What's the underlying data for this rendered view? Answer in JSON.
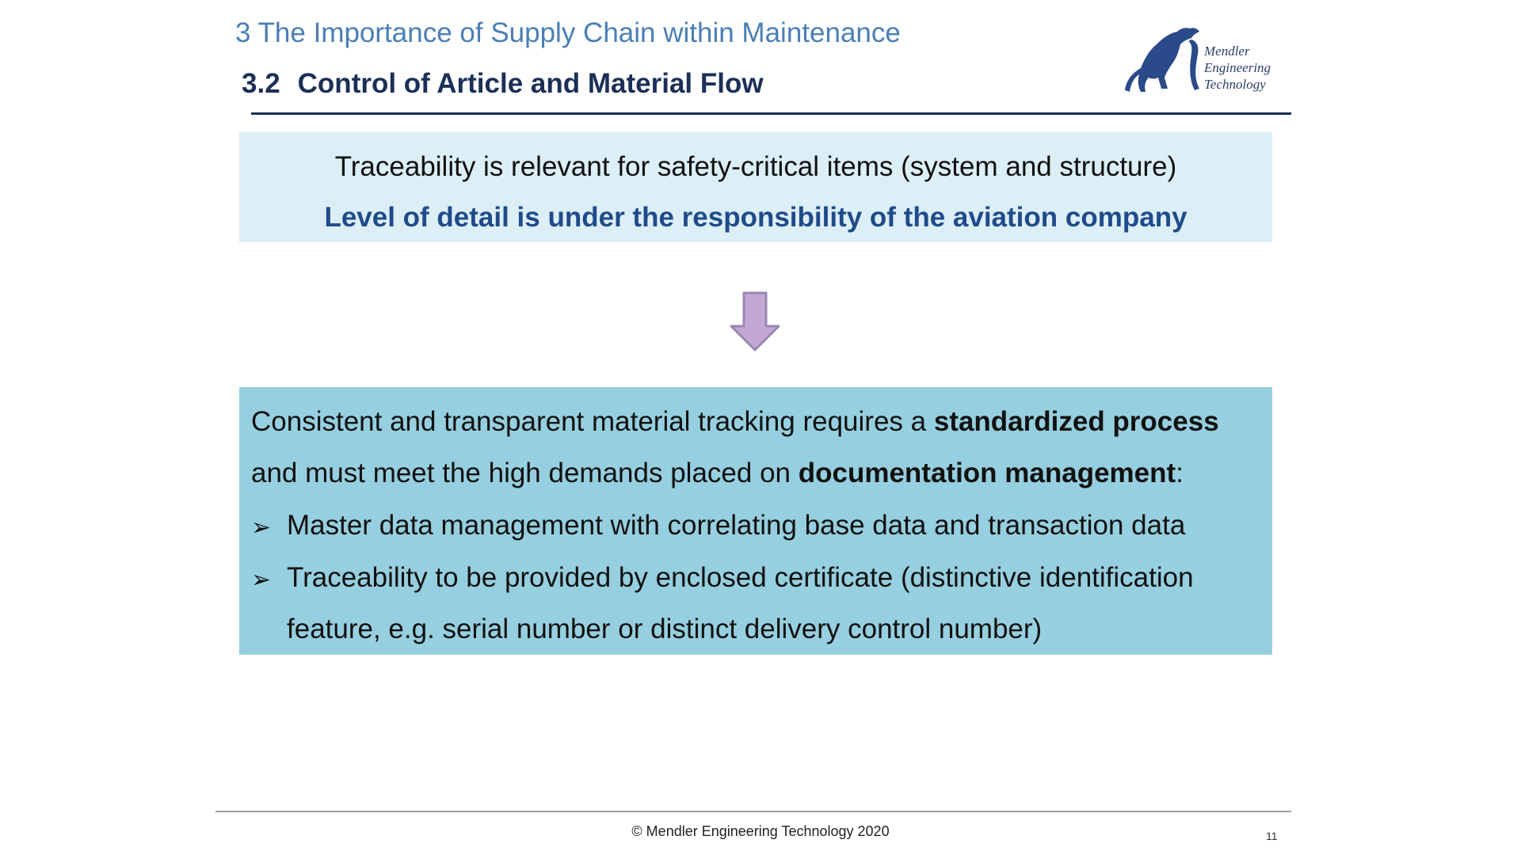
{
  "header": {
    "chapter_title": "3 The Importance of Supply Chain within Maintenance",
    "section_number": "3.2",
    "section_title": "Control of Article and Material Flow"
  },
  "logo": {
    "icon": "leaping-cat-icon",
    "lines": [
      "Mendler",
      "Engineering",
      "Technology"
    ],
    "color": "#2b4a8a"
  },
  "top_box": {
    "line1": "Traceability is relevant for safety-critical items (system and structure)",
    "line2": "Level of detail is under the responsibility of the aviation company",
    "background": "#dceef6",
    "accent": "#1f4b8a"
  },
  "arrow": {
    "icon": "down-arrow-icon",
    "color": "#c3a8d4"
  },
  "bottom_box": {
    "background": "#96cfdf",
    "p1_text": "Consistent and transparent material tracking requires a ",
    "p1_bold": "standardized process",
    "p2_text": "and must meet the high demands placed on ",
    "p2_bold": "documentation management",
    "p2_end": ":",
    "bullet_symbol": "➢",
    "bullets": [
      {
        "text": "Master data management with correlating base data and transaction data"
      },
      {
        "text": "Traceability to be provided by enclosed certificate (distinctive identification",
        "continuation": "feature, e.g. serial number or distinct delivery control number)"
      }
    ]
  },
  "footer": {
    "copyright": "© Mendler Engineering Technology 2020",
    "page_number": "11"
  }
}
